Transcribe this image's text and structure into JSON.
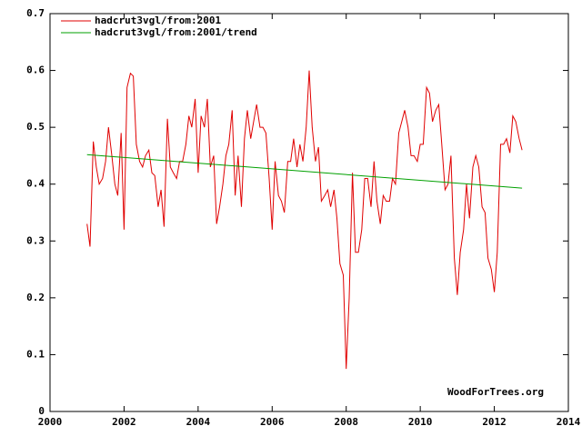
{
  "chart_data": {
    "type": "line",
    "x": [
      2001,
      2001.08,
      2001.17,
      2001.25,
      2001.33,
      2001.42,
      2001.5,
      2001.58,
      2001.67,
      2001.75,
      2001.83,
      2001.92,
      2002,
      2002.08,
      2002.17,
      2002.25,
      2002.33,
      2002.42,
      2002.5,
      2002.58,
      2002.67,
      2002.75,
      2002.83,
      2002.92,
      2003,
      2003.08,
      2003.17,
      2003.25,
      2003.33,
      2003.42,
      2003.5,
      2003.58,
      2003.67,
      2003.75,
      2003.83,
      2003.92,
      2004,
      2004.08,
      2004.17,
      2004.25,
      2004.33,
      2004.42,
      2004.5,
      2004.58,
      2004.67,
      2004.75,
      2004.83,
      2004.92,
      2005,
      2005.08,
      2005.17,
      2005.25,
      2005.33,
      2005.42,
      2005.5,
      2005.58,
      2005.67,
      2005.75,
      2005.83,
      2005.92,
      2006,
      2006.08,
      2006.17,
      2006.25,
      2006.33,
      2006.42,
      2006.5,
      2006.58,
      2006.67,
      2006.75,
      2006.83,
      2006.92,
      2007,
      2007.08,
      2007.17,
      2007.25,
      2007.33,
      2007.42,
      2007.5,
      2007.58,
      2007.67,
      2007.75,
      2007.83,
      2007.92,
      2008,
      2008.08,
      2008.17,
      2008.25,
      2008.33,
      2008.42,
      2008.5,
      2008.58,
      2008.67,
      2008.75,
      2008.83,
      2008.92,
      2009,
      2009.08,
      2009.17,
      2009.25,
      2009.33,
      2009.42,
      2009.5,
      2009.58,
      2009.67,
      2009.75,
      2009.83,
      2009.92,
      2010,
      2010.08,
      2010.17,
      2010.25,
      2010.33,
      2010.42,
      2010.5,
      2010.58,
      2010.67,
      2010.75,
      2010.83,
      2010.92,
      2011,
      2011.08,
      2011.17,
      2011.25,
      2011.33,
      2011.42,
      2011.5,
      2011.58,
      2011.67,
      2011.75,
      2011.83,
      2011.92,
      2012,
      2012.08,
      2012.17,
      2012.25,
      2012.33,
      2012.42,
      2012.5,
      2012.58,
      2012.67,
      2012.75
    ],
    "series": [
      {
        "name": "hadcrut3vgl/from:2001",
        "color": "#e00000",
        "values": [
          0.33,
          0.29,
          0.475,
          0.43,
          0.4,
          0.41,
          0.44,
          0.5,
          0.45,
          0.4,
          0.38,
          0.49,
          0.32,
          0.57,
          0.595,
          0.59,
          0.47,
          0.44,
          0.43,
          0.45,
          0.46,
          0.42,
          0.415,
          0.36,
          0.39,
          0.325,
          0.515,
          0.43,
          0.42,
          0.41,
          0.44,
          0.44,
          0.47,
          0.52,
          0.5,
          0.55,
          0.42,
          0.52,
          0.5,
          0.55,
          0.43,
          0.45,
          0.33,
          0.36,
          0.4,
          0.45,
          0.47,
          0.53,
          0.38,
          0.45,
          0.36,
          0.48,
          0.53,
          0.48,
          0.51,
          0.54,
          0.5,
          0.5,
          0.49,
          0.41,
          0.32,
          0.44,
          0.38,
          0.37,
          0.35,
          0.44,
          0.44,
          0.48,
          0.43,
          0.47,
          0.44,
          0.5,
          0.6,
          0.5,
          0.44,
          0.465,
          0.37,
          0.38,
          0.39,
          0.36,
          0.39,
          0.34,
          0.26,
          0.24,
          0.075,
          0.2,
          0.42,
          0.28,
          0.28,
          0.32,
          0.41,
          0.41,
          0.36,
          0.44,
          0.37,
          0.33,
          0.38,
          0.37,
          0.37,
          0.41,
          0.4,
          0.49,
          0.51,
          0.53,
          0.5,
          0.45,
          0.45,
          0.44,
          0.47,
          0.47,
          0.57,
          0.56,
          0.51,
          0.53,
          0.54,
          0.47,
          0.39,
          0.4,
          0.45,
          0.27,
          0.205,
          0.28,
          0.32,
          0.4,
          0.34,
          0.43,
          0.45,
          0.43,
          0.36,
          0.35,
          0.27,
          0.25,
          0.21,
          0.28,
          0.47,
          0.47,
          0.48,
          0.455,
          0.52,
          0.51,
          0.48,
          0.46
        ]
      },
      {
        "name": "hadcrut3vgl/from:2001/trend",
        "color": "#00a000",
        "x": [
          2001,
          2012.75
        ],
        "values": [
          0.452,
          0.393
        ]
      }
    ],
    "xlim": [
      2000,
      2014
    ],
    "xticks": [
      2000,
      2002,
      2004,
      2006,
      2008,
      2010,
      2012,
      2014
    ],
    "ylim": [
      0,
      0.7
    ],
    "yticks": [
      0,
      0.1,
      0.2,
      0.3,
      0.4,
      0.5,
      0.6,
      0.7
    ],
    "annotation": "WoodForTrees.org"
  }
}
